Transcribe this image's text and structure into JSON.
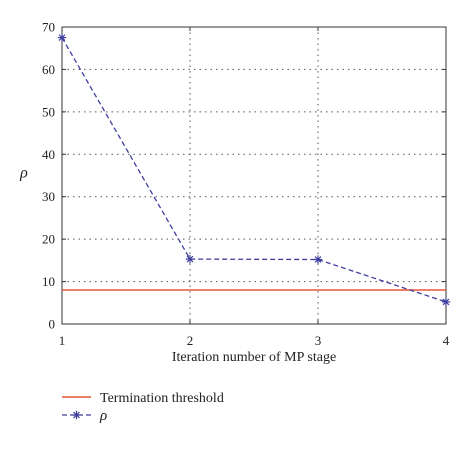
{
  "chart_data": {
    "type": "line",
    "xlabel": "Iteration number of MP stage",
    "ylabel": "ρ",
    "xlim": [
      1,
      4
    ],
    "ylim": [
      0,
      70
    ],
    "xticks": [
      "1",
      "2",
      "3",
      "4"
    ],
    "yticks": [
      "0",
      "10",
      "20",
      "30",
      "40",
      "50",
      "60",
      "70"
    ],
    "grid": true,
    "legend_position": "bottom-left",
    "series": [
      {
        "name": "Termination threshold",
        "color": "#e8553a",
        "style": "solid",
        "marker": "none",
        "x": [
          1,
          4
        ],
        "y": [
          8,
          8
        ]
      },
      {
        "name": "ρ",
        "color": "#3f3f9f",
        "style": "dashed",
        "marker": "asterisk",
        "x": [
          1,
          2,
          3,
          4
        ],
        "y": [
          67.5,
          15.3,
          15.2,
          5.2
        ]
      }
    ]
  }
}
